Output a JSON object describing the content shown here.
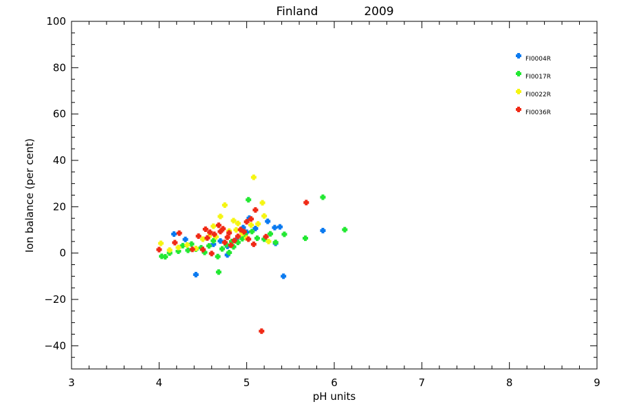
{
  "chart_data": {
    "type": "scatter",
    "title_left": "Finland",
    "title_right": "2009",
    "xlabel": "pH units",
    "ylabel": "Ion balance (per cent)",
    "xlim": [
      3,
      9
    ],
    "ylim": [
      -50,
      100
    ],
    "xticks": [
      "3",
      "4",
      "5",
      "6",
      "7",
      "8",
      "9"
    ],
    "yticks": [
      "−40",
      "−20",
      "0",
      "20",
      "40",
      "60",
      "80",
      "100"
    ],
    "legend_position": "top-right",
    "grid": false,
    "series": [
      {
        "name": "FI0004R",
        "color": "#0a7af0",
        "points": [
          [
            4.17,
            8.2
          ],
          [
            4.42,
            -9.3
          ],
          [
            4.3,
            5.9
          ],
          [
            4.62,
            3.8
          ],
          [
            4.78,
            2.9
          ],
          [
            4.88,
            5.5
          ],
          [
            4.96,
            11.0
          ],
          [
            5.03,
            15.1
          ],
          [
            5.1,
            10.6
          ],
          [
            5.24,
            13.7
          ],
          [
            5.32,
            11.0
          ],
          [
            5.38,
            11.3
          ],
          [
            5.42,
            -10.0
          ],
          [
            5.87,
            9.7
          ],
          [
            5.33,
            4.2
          ],
          [
            4.78,
            -0.8
          ],
          [
            5.0,
            9.0
          ],
          [
            4.7,
            5.2
          ]
        ]
      },
      {
        "name": "FI0017R",
        "color": "#22e832",
        "points": [
          [
            4.03,
            -1.4
          ],
          [
            4.07,
            -1.6
          ],
          [
            4.12,
            0.0
          ],
          [
            4.22,
            0.8
          ],
          [
            4.27,
            3.2
          ],
          [
            4.33,
            1.2
          ],
          [
            4.37,
            3.9
          ],
          [
            4.42,
            1.7
          ],
          [
            4.48,
            2.3
          ],
          [
            4.52,
            0.3
          ],
          [
            4.57,
            3.1
          ],
          [
            4.62,
            5.3
          ],
          [
            4.67,
            -1.5
          ],
          [
            4.68,
            -8.2
          ],
          [
            4.72,
            1.8
          ],
          [
            4.77,
            3.6
          ],
          [
            4.8,
            0.2
          ],
          [
            4.85,
            2.7
          ],
          [
            4.9,
            4.6
          ],
          [
            4.95,
            6.2
          ],
          [
            5.02,
            23.0
          ],
          [
            5.06,
            9.3
          ],
          [
            5.12,
            6.4
          ],
          [
            5.2,
            6.0
          ],
          [
            5.27,
            8.3
          ],
          [
            5.33,
            4.6
          ],
          [
            5.43,
            8.1
          ],
          [
            5.67,
            6.4
          ],
          [
            5.87,
            24.1
          ],
          [
            6.12,
            10.1
          ],
          [
            4.98,
            8.0
          ],
          [
            4.83,
            5.0
          ]
        ]
      },
      {
        "name": "FI0022R",
        "color": "#f5f512",
        "points": [
          [
            4.02,
            4.2
          ],
          [
            4.12,
            1.3
          ],
          [
            4.22,
            2.4
          ],
          [
            4.32,
            3.5
          ],
          [
            4.42,
            2.0
          ],
          [
            4.5,
            6.0
          ],
          [
            4.57,
            7.2
          ],
          [
            4.62,
            11.6
          ],
          [
            4.7,
            15.8
          ],
          [
            4.75,
            20.7
          ],
          [
            4.8,
            9.5
          ],
          [
            4.85,
            14.0
          ],
          [
            4.9,
            12.8
          ],
          [
            4.95,
            8.4
          ],
          [
            5.05,
            12.1
          ],
          [
            5.08,
            32.7
          ],
          [
            5.13,
            12.6
          ],
          [
            5.18,
            21.7
          ],
          [
            5.2,
            16.0
          ],
          [
            5.25,
            5.0
          ],
          [
            4.65,
            7.0
          ],
          [
            4.88,
            10.0
          ],
          [
            5.0,
            6.5
          ]
        ]
      },
      {
        "name": "FI0036R",
        "color": "#f02a16",
        "points": [
          [
            4.0,
            1.5
          ],
          [
            4.18,
            4.5
          ],
          [
            4.23,
            8.6
          ],
          [
            4.38,
            1.6
          ],
          [
            4.45,
            7.3
          ],
          [
            4.5,
            1.5
          ],
          [
            4.53,
            10.3
          ],
          [
            4.58,
            9.0
          ],
          [
            4.6,
            -0.2
          ],
          [
            4.63,
            8.1
          ],
          [
            4.68,
            12.0
          ],
          [
            4.7,
            9.3
          ],
          [
            4.73,
            10.5
          ],
          [
            4.75,
            4.6
          ],
          [
            4.8,
            8.7
          ],
          [
            4.82,
            3.4
          ],
          [
            4.86,
            5.4
          ],
          [
            4.9,
            7.2
          ],
          [
            4.93,
            10.1
          ],
          [
            4.97,
            9.2
          ],
          [
            5.0,
            13.5
          ],
          [
            5.05,
            14.7
          ],
          [
            5.08,
            3.8
          ],
          [
            5.1,
            18.6
          ],
          [
            5.17,
            -33.7
          ],
          [
            5.22,
            7.1
          ],
          [
            5.68,
            21.8
          ],
          [
            4.55,
            6.5
          ],
          [
            4.78,
            6.8
          ],
          [
            5.02,
            6.0
          ]
        ]
      }
    ]
  }
}
